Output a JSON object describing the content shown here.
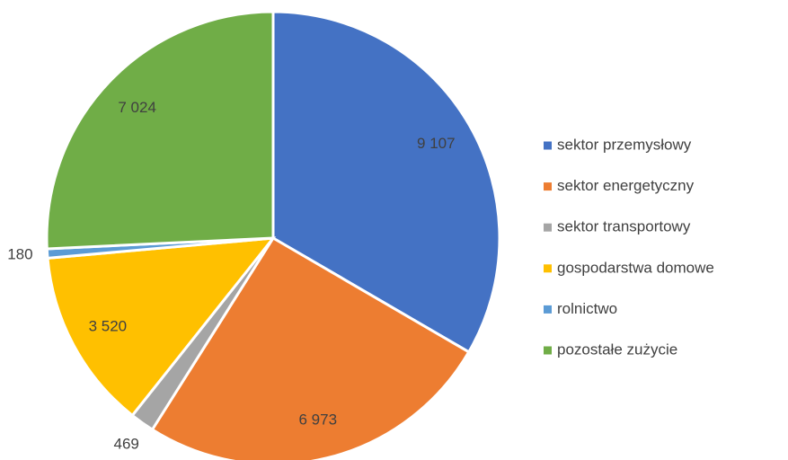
{
  "chart_data": {
    "type": "pie",
    "categories": [
      "sektor przemysłowy",
      "sektor energetyczny",
      "sektor transportowy",
      "gospodarstwa domowe",
      "rolnictwo",
      "pozostałe zużycie"
    ],
    "values": [
      9107,
      6973,
      469,
      3520,
      180,
      7024
    ],
    "value_labels": [
      "9 107",
      "6 973",
      "469",
      "3 520",
      "180",
      "7 024"
    ],
    "colors": [
      "#4472c4",
      "#ed7d31",
      "#a5a5a5",
      "#ffc000",
      "#5b9bd5",
      "#70ad47"
    ],
    "legend": "right"
  }
}
